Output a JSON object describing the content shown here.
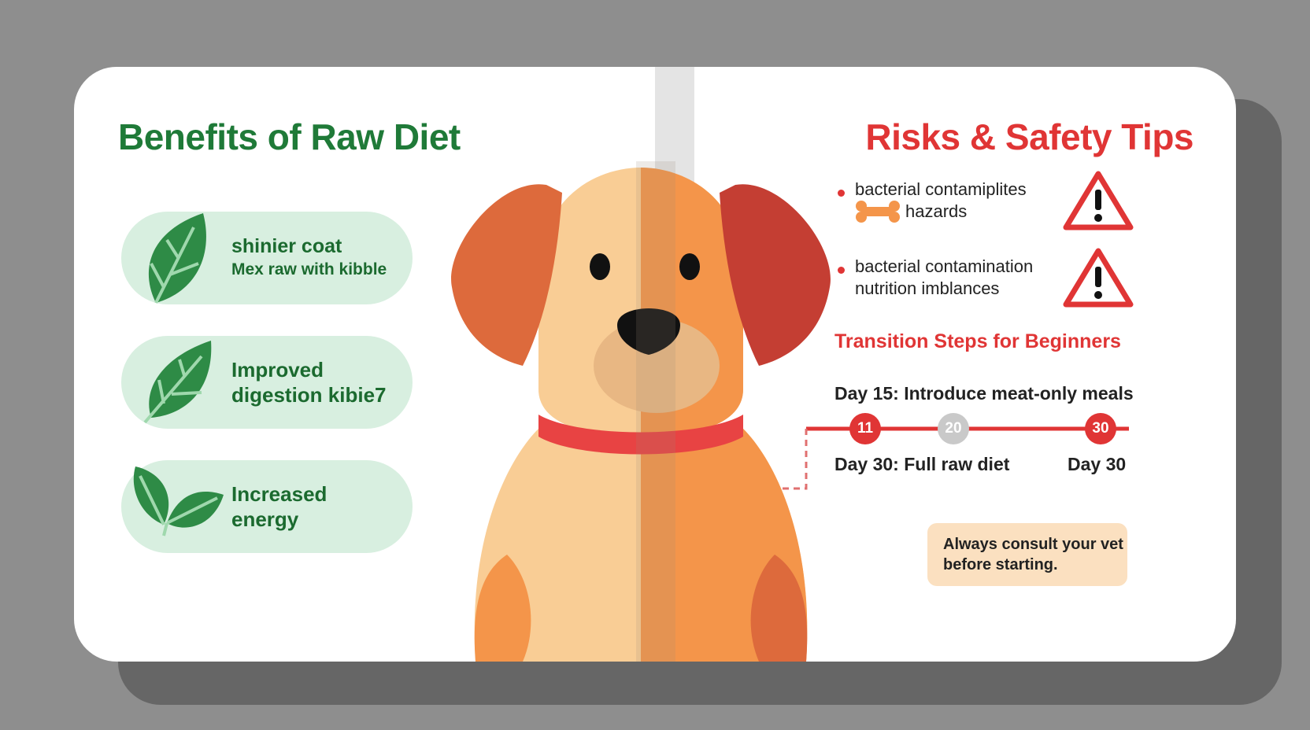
{
  "benefits": {
    "title": "Benefits of Raw Diet",
    "items": [
      {
        "line1": "shinier coat",
        "line2": "Mex raw with kibble"
      },
      {
        "line1": "Improved",
        "line2": "digestion kibie7"
      },
      {
        "line1": "Increased",
        "line2": "energy"
      }
    ]
  },
  "risks": {
    "title": "Risks & Safety Tips",
    "items": [
      {
        "line1": "bacterial contamiplites",
        "line2": "hazards",
        "icon": "bone-icon"
      },
      {
        "line1": "bacterial contamination",
        "line2": "nutrition  imblances"
      }
    ]
  },
  "transition": {
    "title": "Transition Steps for Beginners",
    "top_step": "Day 15:  Introduce meat-only meals",
    "nodes": [
      "11",
      "20",
      "30"
    ],
    "bottom_step": "Day 30:  Full raw diet",
    "end_label": "Day 30"
  },
  "note": {
    "line1": "Always consult your vet",
    "line2": "before starting."
  },
  "colors": {
    "green": "#1f7a38",
    "red": "#e03535",
    "pill": "#d8efe0",
    "note": "#fbe0c0"
  }
}
